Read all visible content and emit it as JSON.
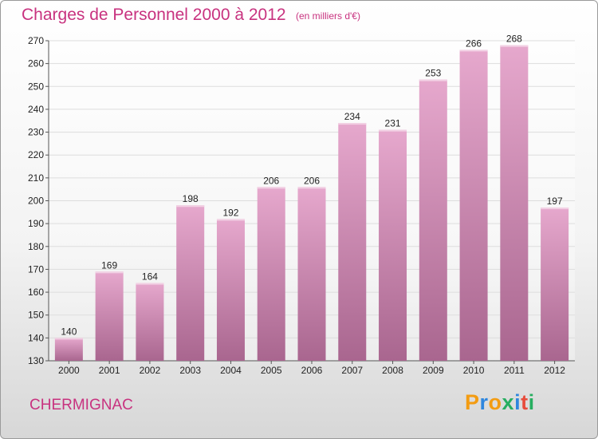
{
  "header": {
    "title": "Charges de Personnel 2000 à 2012",
    "subtitle": "(en milliers d'€)"
  },
  "footer": {
    "place": "CHERMIGNAC",
    "logo": {
      "text": "Proxiti",
      "letter_colors": [
        "#f39c12",
        "#2e86de",
        "#f39c12",
        "#27ae60",
        "#2e86de",
        "#e74c3c",
        "#27ae60"
      ]
    }
  },
  "colors": {
    "title": "#c8327f",
    "bar_top": "#e6a8cd",
    "bar_bottom": "#a9668f",
    "gridline": "#dddddd",
    "axis_text": "#222222"
  },
  "chart_data": {
    "type": "bar",
    "title": "Charges de Personnel 2000 à 2012",
    "subtitle": "(en milliers d'€)",
    "xlabel": "",
    "ylabel": "",
    "categories": [
      "2000",
      "2001",
      "2002",
      "2003",
      "2004",
      "2005",
      "2006",
      "2007",
      "2008",
      "2009",
      "2010",
      "2011",
      "2012"
    ],
    "values": [
      140,
      169,
      164,
      198,
      192,
      206,
      206,
      234,
      231,
      253,
      266,
      268,
      197
    ],
    "ylim": [
      130,
      270
    ],
    "yticks": [
      130,
      140,
      150,
      160,
      170,
      180,
      190,
      200,
      210,
      220,
      230,
      240,
      250,
      260,
      270
    ],
    "grid": true,
    "legend": "none"
  }
}
